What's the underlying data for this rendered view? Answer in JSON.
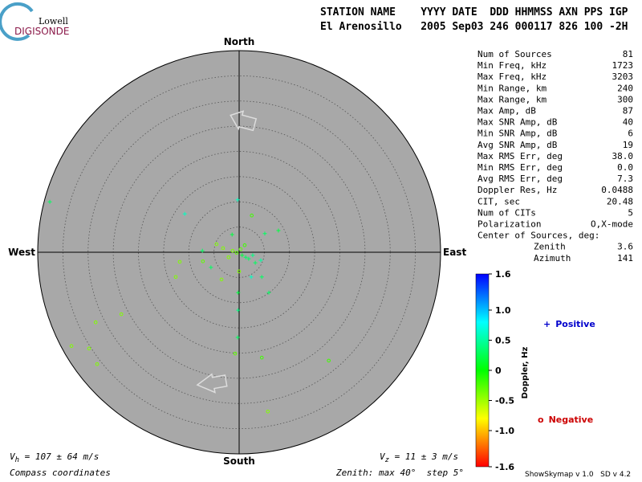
{
  "logo": {
    "top": "Lowell",
    "bottom": "DIGISONDE"
  },
  "header": {
    "line1": "STATION NAME    YYYY DATE  DDD HHMMSS AXN PPS IGP",
    "line2": "El Arenosillo   2005 Sep03 246 000117 826 100 -2H"
  },
  "compass": {
    "north": "North",
    "south": "South",
    "east": "East",
    "west": "West"
  },
  "zenith_max": 40,
  "zenith_step": 5,
  "stats": [
    [
      "Num of Sources",
      "81"
    ],
    [
      "Min Freq, kHz",
      "1723"
    ],
    [
      "Max Freq, kHz",
      "3203"
    ],
    [
      "Min Range, km",
      "240"
    ],
    [
      "Max Range, km",
      "300"
    ],
    [
      "Max Amp, dB",
      "87"
    ],
    [
      "Max SNR Amp, dB",
      "40"
    ],
    [
      "Min SNR Amp, dB",
      "6"
    ],
    [
      "Avg SNR Amp, dB",
      "19"
    ],
    [
      "Max RMS Err, deg",
      "38.0"
    ],
    [
      "Min RMS Err, deg",
      "0.0"
    ],
    [
      "Avg RMS Err, deg",
      "7.3"
    ],
    [
      "Doppler Res, Hz",
      "0.0488"
    ],
    [
      "CIT, sec",
      "20.48"
    ],
    [
      "Num of CITs",
      "5"
    ],
    [
      "Polarization",
      "O,X-mode"
    ],
    [
      "Center of Sources, deg:",
      ""
    ],
    [
      "Zenith",
      "3.6"
    ],
    [
      "Azimuth",
      "141"
    ]
  ],
  "colorbar": {
    "label": "Doppler, Hz",
    "lim": [
      -1.6,
      1.6
    ],
    "ticks": [
      1.6,
      {
        "value": 1,
        "label": "1.0"
      },
      0.5,
      0,
      -0.5,
      {
        "value": -1,
        "label": "-1.0"
      },
      -1.6
    ]
  },
  "legend": {
    "positive_symbol": "+",
    "positive": "Positive",
    "negative_symbol": "o",
    "negative": "Negative"
  },
  "footer": {
    "vh": {
      "v": "V",
      "sub": "h",
      "text": " = 107 ± 64 m/s"
    },
    "vz": {
      "v": "V",
      "sub": "z",
      "text": " = 11 ± 3 m/s"
    },
    "coords": "Compass coordinates",
    "zenith": {
      "prefix": "Zenith: max ",
      "mid": "°  step ",
      "suffix": "°"
    },
    "version": "ShowSkymap v 1.0   SD v 4.2"
  },
  "sources": [
    {
      "east": -37.6,
      "north": 10.0,
      "doppler": 0.3
    },
    {
      "east": -0.3,
      "north": 10.4,
      "doppler": 0.6
    },
    {
      "east": -10.8,
      "north": 7.6,
      "doppler": 0.6
    },
    {
      "east": 2.5,
      "north": 7.3,
      "doppler": -0.2
    },
    {
      "east": 7.8,
      "north": 4.3,
      "doppler": 0.2
    },
    {
      "east": 5.1,
      "north": 3.7,
      "doppler": 0.3
    },
    {
      "east": -1.4,
      "north": 3.5,
      "doppler": 0.2
    },
    {
      "east": -4.5,
      "north": 1.6,
      "doppler": -0.4
    },
    {
      "east": -7.3,
      "north": 0.3,
      "doppler": 0.3
    },
    {
      "east": -11.8,
      "north": -1.9,
      "doppler": -0.4
    },
    {
      "east": -7.2,
      "north": -1.8,
      "doppler": -0.3
    },
    {
      "east": -5.6,
      "north": -3.0,
      "doppler": 0.3
    },
    {
      "east": -12.6,
      "north": -4.9,
      "doppler": -0.4
    },
    {
      "east": -3.5,
      "north": -5.4,
      "doppler": -0.4
    },
    {
      "east": 0.0,
      "north": -3.8,
      "doppler": -0.4
    },
    {
      "east": 2.4,
      "north": -4.9,
      "doppler": 0.6
    },
    {
      "east": 4.5,
      "north": -4.9,
      "doppler": 0.3
    },
    {
      "east": 5.9,
      "north": -8.0,
      "doppler": 0.3
    },
    {
      "east": -0.2,
      "north": -8.0,
      "doppler": 0.2
    },
    {
      "east": -0.2,
      "north": -11.5,
      "doppler": 0.4
    },
    {
      "east": -23.4,
      "north": -12.3,
      "doppler": -0.4
    },
    {
      "east": -28.5,
      "north": -13.9,
      "doppler": -0.4
    },
    {
      "east": -0.3,
      "north": -16.9,
      "doppler": 0.3
    },
    {
      "east": -33.3,
      "north": -18.6,
      "doppler": -0.4
    },
    {
      "east": -29.8,
      "north": -19.1,
      "doppler": -0.4
    },
    {
      "east": -0.8,
      "north": -20.1,
      "doppler": -0.3
    },
    {
      "east": 4.5,
      "north": -20.9,
      "doppler": -0.2
    },
    {
      "east": 17.8,
      "north": -21.5,
      "doppler": -0.2
    },
    {
      "east": -28.2,
      "north": -22.2,
      "doppler": -0.4
    },
    {
      "east": 5.7,
      "north": -31.6,
      "doppler": -0.4
    },
    {
      "east": -1.3,
      "north": 0.3,
      "doppler": -0.4
    },
    {
      "east": -0.5,
      "north": -0.1,
      "doppler": -0.3
    },
    {
      "east": 0.6,
      "north": -0.6,
      "doppler": 0.2
    },
    {
      "east": 1.3,
      "north": -1.0,
      "doppler": 0.3
    },
    {
      "east": 1.9,
      "north": -1.3,
      "doppler": 0.3
    },
    {
      "east": 2.7,
      "north": -0.6,
      "doppler": 0.4
    },
    {
      "east": 0.3,
      "north": 0.6,
      "doppler": -0.3
    },
    {
      "east": -2.1,
      "north": -1.0,
      "doppler": -0.4
    },
    {
      "east": 3.2,
      "north": -2.1,
      "doppler": 0.3
    },
    {
      "east": 1.1,
      "north": 1.4,
      "doppler": -0.2
    },
    {
      "east": -3.2,
      "north": 0.8,
      "doppler": -0.4
    },
    {
      "east": 4.3,
      "north": -1.6,
      "doppler": 0.5
    }
  ]
}
